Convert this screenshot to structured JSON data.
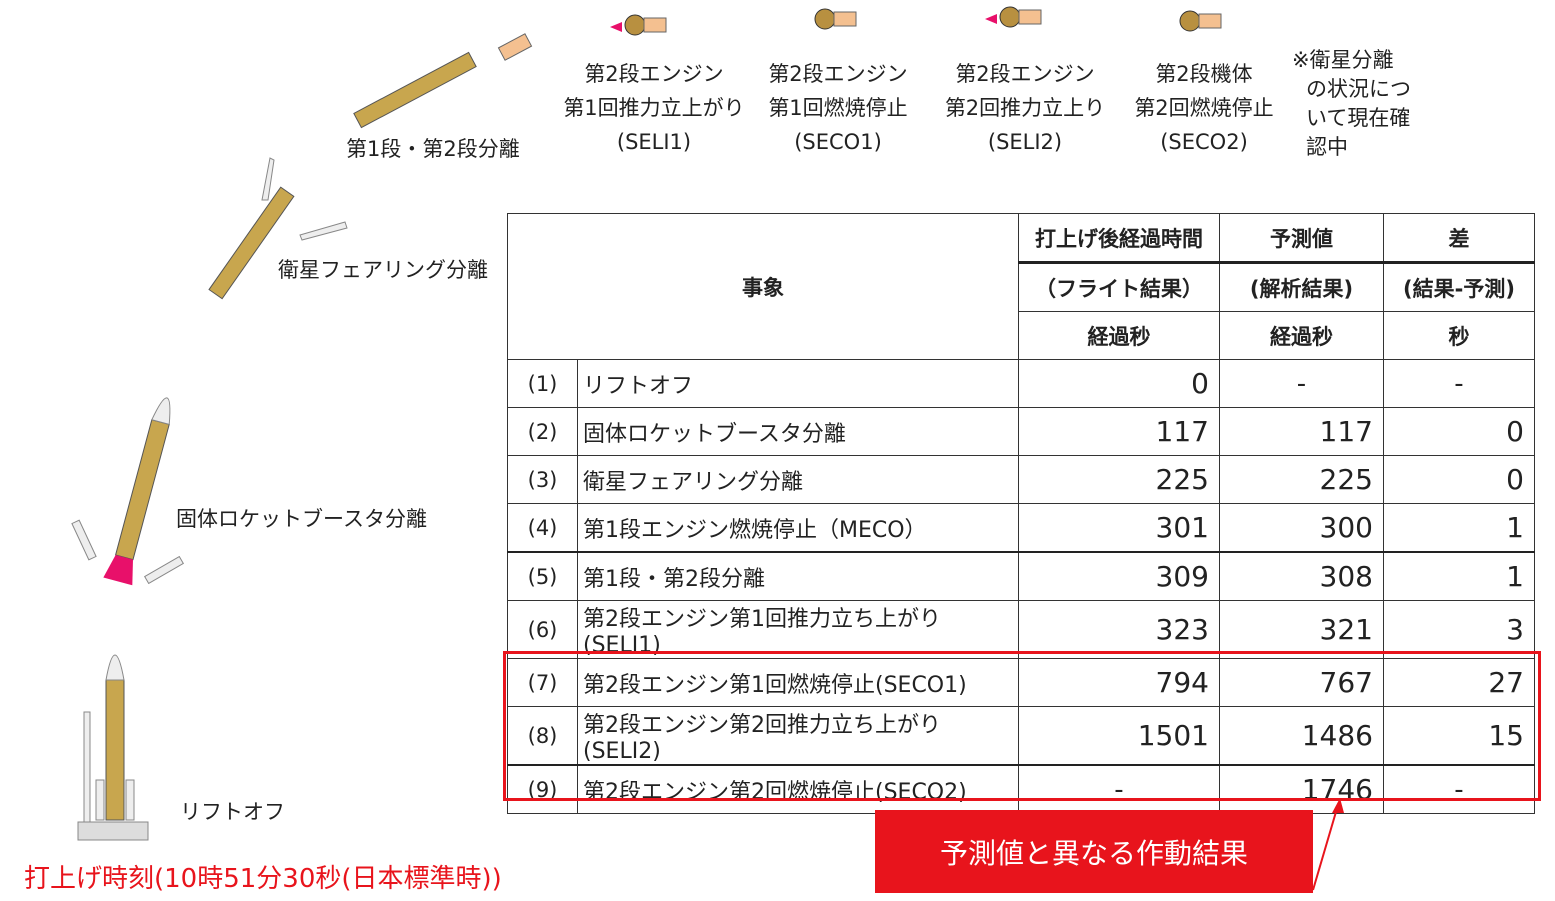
{
  "stage_labels": [
    {
      "lines": [
        "第1段・第2段分離"
      ]
    },
    {
      "lines": [
        "第2段エンジン",
        "第1回推力立上がり",
        "(SELI1)"
      ]
    },
    {
      "lines": [
        "第2段エンジン",
        "第1回燃焼停止",
        "(SECO1)"
      ]
    },
    {
      "lines": [
        "第2段エンジン",
        "第2回推力立上り",
        "(SELI2)"
      ]
    },
    {
      "lines": [
        "第2段機体",
        "第2回燃焼停止",
        "(SECO2)"
      ]
    },
    {
      "lines": [
        "※衛星分離",
        "の状況につ",
        "いて現在確",
        "認中"
      ]
    }
  ],
  "left_labels": {
    "fairing": "衛星フェアリング分離",
    "srb": "固体ロケットブースタ分離",
    "liftoff": "リフトオフ"
  },
  "launch_time": "打上げ時刻(10時51分30秒(日本標準時))",
  "callout": "予測値と異なる作動結果",
  "colors": {
    "highlight": "#e8141c",
    "rocket_body": "#c8a64e",
    "plume": "#e8106a"
  },
  "table": {
    "header": {
      "event": "事象",
      "col1": [
        "打上げ後経過時間",
        "（フライト結果）",
        "経過秒"
      ],
      "col2": [
        "予測値",
        "(解析結果)",
        "経過秒"
      ],
      "col3": [
        "差",
        "(結果-予測)",
        "秒"
      ]
    },
    "rows": [
      {
        "no": "(1)",
        "event": "リフトオフ",
        "flight": "0",
        "pred": "-",
        "diff": "-"
      },
      {
        "no": "(2)",
        "event": "固体ロケットブースタ分離",
        "flight": "117",
        "pred": "117",
        "diff": "0"
      },
      {
        "no": "(3)",
        "event": "衛星フェアリング分離",
        "flight": "225",
        "pred": "225",
        "diff": "0"
      },
      {
        "no": "(4)",
        "event": "第1段エンジン燃焼停止（MECO）",
        "flight": "301",
        "pred": "300",
        "diff": "1"
      },
      {
        "no": "(5)",
        "event": "第1段・第2段分離",
        "flight": "309",
        "pred": "308",
        "diff": "1"
      },
      {
        "no": "(6)",
        "event": "第2段エンジン第1回推力立ち上がり(SELI1)",
        "flight": "323",
        "pred": "321",
        "diff": "3"
      },
      {
        "no": "(7)",
        "event": "第2段エンジン第1回燃焼停止(SECO1)",
        "flight": "794",
        "pred": "767",
        "diff": "27"
      },
      {
        "no": "(8)",
        "event": "第2段エンジン第2回推力立ち上がり(SELI2)",
        "flight": "1501",
        "pred": "1486",
        "diff": "15"
      },
      {
        "no": "(9)",
        "event": "第2段エンジン第2回燃焼停止(SECO2)",
        "flight": "-",
        "pred": "1746",
        "diff": "-"
      }
    ]
  }
}
